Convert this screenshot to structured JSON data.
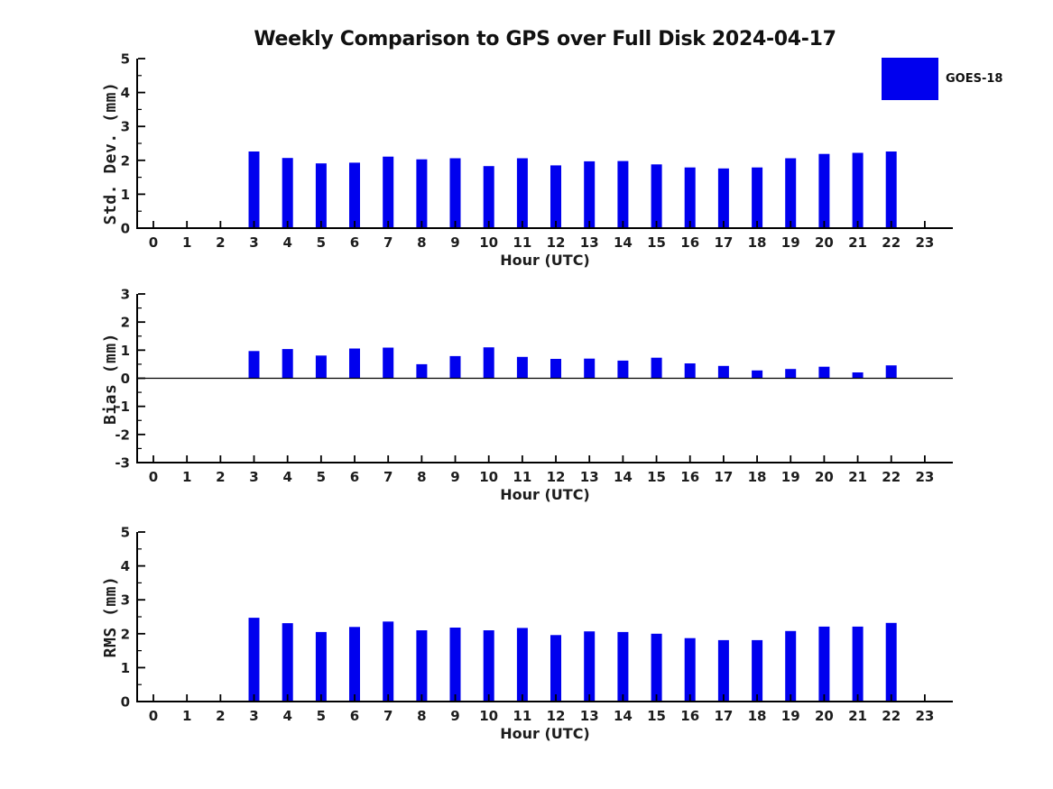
{
  "title": "Weekly Comparison to GPS over Full Disk 2024-04-17",
  "legend": {
    "label": "GOES-18",
    "color": "#0000ee"
  },
  "colors": {
    "bar": "#0000ee",
    "axis": "#000000",
    "text": "#1c1c1c"
  },
  "chart_data": [
    {
      "type": "bar",
      "name": "std-dev",
      "ylabel": "Std. Dev. (mm)",
      "xlabel": "Hour (UTC)",
      "ylim": [
        0,
        5
      ],
      "yticks": [
        0,
        1,
        2,
        3,
        4,
        5
      ],
      "categories": [
        0,
        1,
        2,
        3,
        4,
        5,
        6,
        7,
        8,
        9,
        10,
        11,
        12,
        13,
        14,
        15,
        16,
        17,
        18,
        19,
        20,
        21,
        22,
        23
      ],
      "values": [
        null,
        null,
        null,
        2.26,
        2.07,
        1.91,
        1.93,
        2.11,
        2.03,
        2.06,
        1.83,
        2.06,
        1.85,
        1.97,
        1.98,
        1.88,
        1.79,
        1.76,
        1.79,
        2.06,
        2.19,
        2.22,
        2.26,
        null
      ]
    },
    {
      "type": "bar",
      "name": "bias",
      "ylabel": "Bias (mm)",
      "xlabel": "Hour (UTC)",
      "ylim": [
        -3,
        3
      ],
      "yticks": [
        -3,
        -2,
        -1,
        0,
        1,
        2,
        3
      ],
      "zero_line": true,
      "categories": [
        0,
        1,
        2,
        3,
        4,
        5,
        6,
        7,
        8,
        9,
        10,
        11,
        12,
        13,
        14,
        15,
        16,
        17,
        18,
        19,
        20,
        21,
        22,
        23
      ],
      "values": [
        null,
        null,
        null,
        0.97,
        1.04,
        0.81,
        1.06,
        1.09,
        0.5,
        0.79,
        1.1,
        0.76,
        0.69,
        0.7,
        0.63,
        0.73,
        0.53,
        0.44,
        0.28,
        0.33,
        0.41,
        0.21,
        0.46,
        null
      ]
    },
    {
      "type": "bar",
      "name": "rms",
      "ylabel": "RMS (mm)",
      "xlabel": "Hour (UTC)",
      "ylim": [
        0,
        5
      ],
      "yticks": [
        0,
        1,
        2,
        3,
        4,
        5
      ],
      "categories": [
        0,
        1,
        2,
        3,
        4,
        5,
        6,
        7,
        8,
        9,
        10,
        11,
        12,
        13,
        14,
        15,
        16,
        17,
        18,
        19,
        20,
        21,
        22,
        23
      ],
      "values": [
        null,
        null,
        null,
        2.47,
        2.31,
        2.05,
        2.2,
        2.36,
        2.1,
        2.18,
        2.1,
        2.17,
        1.96,
        2.07,
        2.05,
        2.0,
        1.87,
        1.81,
        1.81,
        2.08,
        2.21,
        2.21,
        2.32,
        null
      ]
    }
  ]
}
